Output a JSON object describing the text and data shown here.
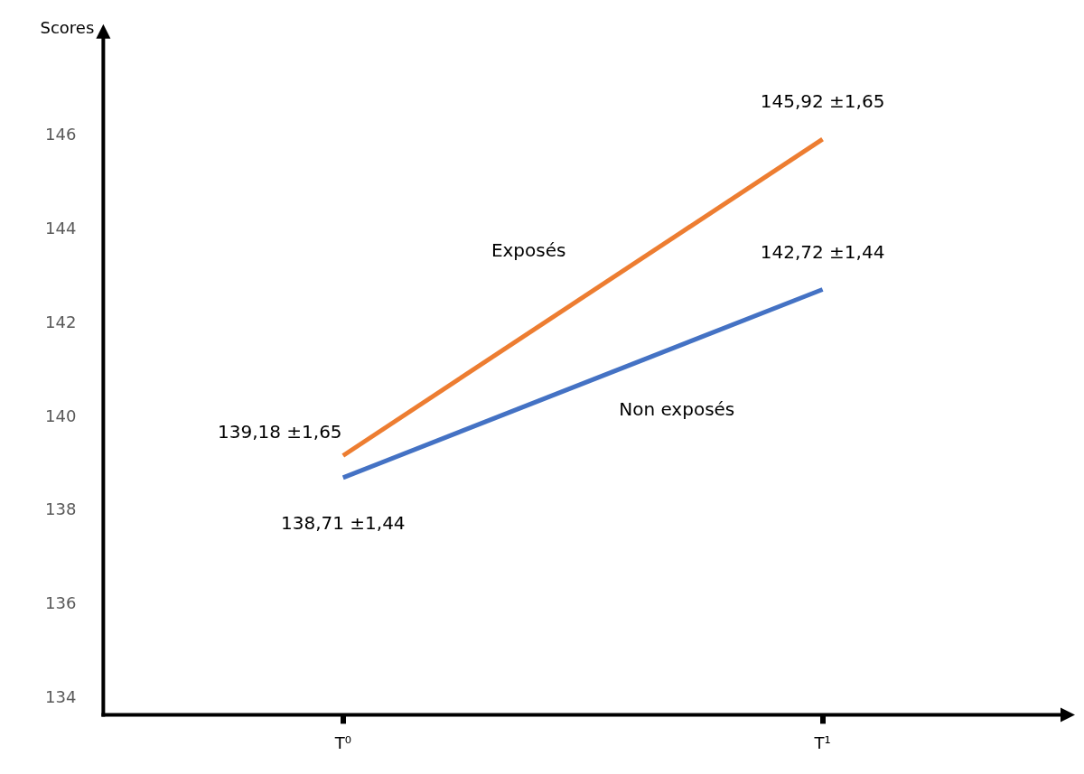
{
  "chart_data": {
    "type": "line",
    "ylabel": "Scores",
    "categories": [
      "T⁰",
      "T¹"
    ],
    "series": [
      {
        "name": "Exposés",
        "color": "#ed7d31",
        "values": [
          139.18,
          145.92
        ],
        "value_labels": [
          "139,18 ±1,65",
          "145,92 ±1,65"
        ]
      },
      {
        "name": "Non exposés",
        "color": "#4472c4",
        "values": [
          138.71,
          142.72
        ],
        "value_labels": [
          "138,71 ±1,44",
          "142,72 ±1,44"
        ]
      }
    ],
    "ylim": [
      133.66,
      148.1
    ],
    "yticks": [
      134,
      136,
      138,
      140,
      142,
      144,
      146
    ],
    "grid": false,
    "legend": false,
    "marker": "none",
    "line_style": "solid"
  }
}
